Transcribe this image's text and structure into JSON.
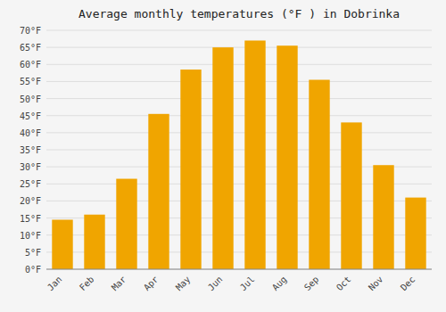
{
  "chart_data": {
    "type": "bar",
    "title": "Average monthly temperatures (°F ) in Dobrinka",
    "categories": [
      "Jan",
      "Feb",
      "Mar",
      "Apr",
      "May",
      "Jun",
      "Jul",
      "Aug",
      "Sep",
      "Oct",
      "Nov",
      "Dec"
    ],
    "values": [
      14.5,
      16.0,
      26.5,
      45.5,
      58.5,
      65.0,
      67.0,
      65.5,
      55.5,
      43.0,
      30.5,
      21.0
    ],
    "color": "#F0A500",
    "ylim": [
      0,
      70
    ],
    "yticks": [
      {
        "value": 0,
        "label": "0°F"
      },
      {
        "value": 5,
        "label": "5°F"
      },
      {
        "value": 10,
        "label": "10°F"
      },
      {
        "value": 15,
        "label": "15°F"
      },
      {
        "value": 20,
        "label": "20°F"
      },
      {
        "value": 25,
        "label": "25°F"
      },
      {
        "value": 30,
        "label": "30°F"
      },
      {
        "value": 35,
        "label": "35°F"
      },
      {
        "value": 40,
        "label": "40°F"
      },
      {
        "value": 45,
        "label": "45°F"
      },
      {
        "value": 50,
        "label": "50°F"
      },
      {
        "value": 55,
        "label": "55°F"
      },
      {
        "value": 60,
        "label": "60°F"
      },
      {
        "value": 65,
        "label": "65°F"
      },
      {
        "value": 70,
        "label": "70°F"
      }
    ],
    "grid": true
  }
}
